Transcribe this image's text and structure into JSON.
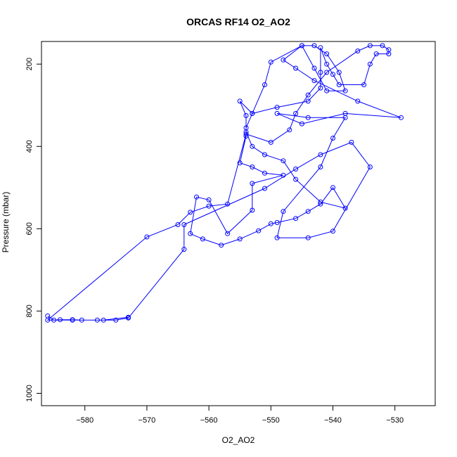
{
  "chart_data": {
    "type": "line",
    "title": "ORCAS RF14 O2_AO2",
    "xlabel": "O2_AO2",
    "ylabel": "Pressure (mbar)",
    "xlim": [
      -587,
      -523.5
    ],
    "ylim": [
      1030,
      145
    ],
    "y_reversed": true,
    "grid": false,
    "legend": "none",
    "series_color": "#0000ff",
    "marker": "open-circle",
    "x_ticks": [
      -580,
      -570,
      -560,
      -550,
      -540,
      -530
    ],
    "y_ticks": [
      200,
      400,
      600,
      800,
      1000
    ],
    "series": [
      {
        "points": [
          [
            -586,
            812
          ],
          [
            -585,
            822
          ],
          [
            -584,
            821
          ],
          [
            -582,
            821
          ],
          [
            -580.5,
            822
          ],
          [
            -578,
            822
          ],
          [
            -575,
            822
          ],
          [
            -573,
            817
          ],
          [
            -564,
            650
          ],
          [
            -564,
            590
          ],
          [
            -551,
            502
          ],
          [
            -546,
            455
          ],
          [
            -542,
            420
          ],
          [
            -537,
            390
          ],
          [
            -534,
            450
          ],
          [
            -540,
            606
          ],
          [
            -544,
            622
          ],
          [
            -549,
            622
          ],
          [
            -548,
            558
          ],
          [
            -542,
            450
          ],
          [
            -540,
            380
          ],
          [
            -538,
            330
          ],
          [
            -544,
            330
          ],
          [
            -549,
            320
          ],
          [
            -545,
            345
          ],
          [
            -538,
            320
          ],
          [
            -529,
            330
          ],
          [
            -536,
            290
          ],
          [
            -543,
            240
          ],
          [
            -546,
            210
          ],
          [
            -548,
            190
          ],
          [
            -545,
            155
          ],
          [
            -543,
            155
          ],
          [
            -541,
            175
          ],
          [
            -539,
            220
          ],
          [
            -538,
            265
          ],
          [
            -541,
            265
          ],
          [
            -543,
            210
          ],
          [
            -545,
            155
          ],
          [
            -550,
            195
          ],
          [
            -551,
            250
          ],
          [
            -553,
            320
          ],
          [
            -554,
            355
          ],
          [
            -554,
            375
          ],
          [
            -555,
            440
          ],
          [
            -553,
            450
          ],
          [
            -551,
            465
          ],
          [
            -548,
            470
          ],
          [
            -553,
            490
          ],
          [
            -553,
            555
          ],
          [
            -557,
            612
          ],
          [
            -560,
            530
          ],
          [
            -562,
            523
          ],
          [
            -563,
            612
          ],
          [
            -561,
            625
          ],
          [
            -558,
            640
          ],
          [
            -555,
            625
          ],
          [
            -552,
            605
          ],
          [
            -550,
            588
          ],
          [
            -549,
            585
          ],
          [
            -546,
            575
          ],
          [
            -544,
            558
          ],
          [
            -542,
            540
          ],
          [
            -540,
            500
          ],
          [
            -538,
            550
          ],
          [
            -542,
            535
          ],
          [
            -546,
            480
          ],
          [
            -548,
            435
          ],
          [
            -551,
            420
          ],
          [
            -553,
            400
          ],
          [
            -554,
            365
          ],
          [
            -554,
            325
          ],
          [
            -555,
            290
          ],
          [
            -553,
            320
          ],
          [
            -549,
            305
          ],
          [
            -544,
            290
          ],
          [
            -542,
            258
          ],
          [
            -542,
            220
          ],
          [
            -542,
            160
          ],
          [
            -541,
            200
          ],
          [
            -540,
            225
          ],
          [
            -539,
            250
          ],
          [
            -535,
            250
          ],
          [
            -534,
            200
          ],
          [
            -533,
            175
          ],
          [
            -531,
            175
          ],
          [
            -531,
            165
          ],
          [
            -532,
            155
          ],
          [
            -534,
            155
          ],
          [
            -536,
            168
          ],
          [
            -541,
            220
          ],
          [
            -544,
            275
          ],
          [
            -546,
            320
          ],
          [
            -547,
            360
          ],
          [
            -550,
            390
          ],
          [
            -554,
            370
          ],
          [
            -557,
            540
          ],
          [
            -560,
            545
          ],
          [
            -563,
            560
          ],
          [
            -565,
            590
          ],
          [
            -570,
            620
          ],
          [
            -586,
            822
          ],
          [
            -582,
            822
          ],
          [
            -577,
            822
          ],
          [
            -573,
            815
          ]
        ]
      }
    ]
  }
}
